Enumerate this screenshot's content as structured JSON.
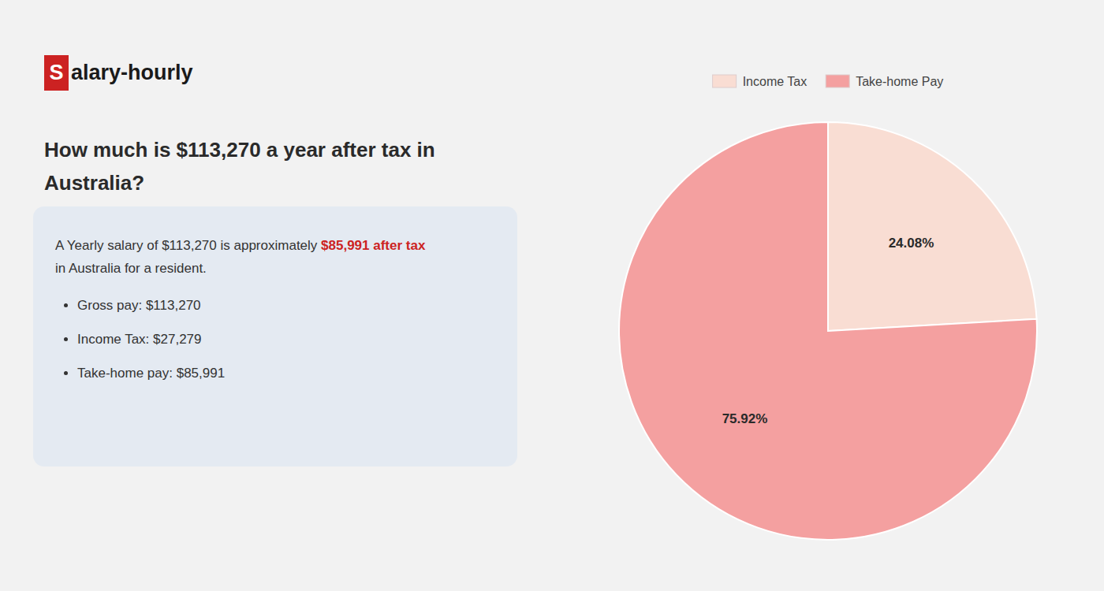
{
  "chart_data": {
    "type": "pie",
    "title": "How much is $113,270 a year after tax in Australia?",
    "categories": [
      "Income Tax",
      "Take-home Pay"
    ],
    "values": [
      24.08,
      75.92
    ],
    "value_labels": [
      "24.08%",
      "75.92%"
    ],
    "colors": [
      "#f9ddd3",
      "#f4a0a0"
    ],
    "data_labels": true,
    "legend": "top",
    "annotations": [
      "S",
      "alary-hourly",
      "A Yearly salary of $113,270 is approximately ",
      "$85,991 after tax",
      "in Australia for a resident.",
      "Gross pay: $113,270",
      "Income Tax: $27,279",
      "Take-home pay: $85,991"
    ]
  }
}
